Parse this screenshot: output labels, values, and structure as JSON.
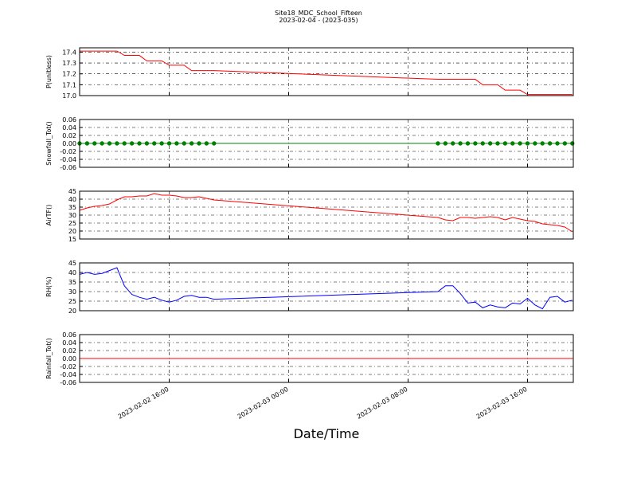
{
  "chart_data": [
    {
      "type": "line",
      "title": "Site18_MDC_School_Fifteen",
      "subtitle": "2023-02-04 - (2023-035)",
      "ylabel": "P(unitless)",
      "color": "#ff0000",
      "grid": true,
      "xlim": [
        "2023-02-02 10:00",
        "2023-02-03 19:04"
      ],
      "xticks": [
        "2023-02-02 16:00",
        "2023-02-03 00:00",
        "2023-02-03 08:00",
        "2023-02-03 16:00"
      ],
      "ylim": [
        17.0,
        17.44
      ],
      "yticks": [
        {
          "value": 17.0,
          "label": "17.0"
        },
        17.1,
        17.2,
        17.3,
        17.4
      ],
      "x": [
        "2023-02-02 10:00",
        "2023-02-02 10:30",
        "2023-02-02 11:00",
        "2023-02-02 11:30",
        "2023-02-02 12:00",
        "2023-02-02 12:30",
        "2023-02-02 13:00",
        "2023-02-02 13:30",
        "2023-02-02 14:00",
        "2023-02-02 14:30",
        "2023-02-02 15:00",
        "2023-02-02 15:30",
        "2023-02-02 16:00",
        "2023-02-02 16:30",
        "2023-02-02 17:00",
        "2023-02-02 17:30",
        "2023-02-02 18:00",
        "2023-02-02 18:30",
        "2023-02-02 19:00",
        "2023-02-03 10:00",
        "2023-02-03 10:30",
        "2023-02-03 11:00",
        "2023-02-03 11:30",
        "2023-02-03 12:00",
        "2023-02-03 12:30",
        "2023-02-03 13:00",
        "2023-02-03 13:30",
        "2023-02-03 14:00",
        "2023-02-03 14:30",
        "2023-02-03 15:00",
        "2023-02-03 15:30",
        "2023-02-03 16:00",
        "2023-02-03 16:30",
        "2023-02-03 17:00",
        "2023-02-03 17:30",
        "2023-02-03 18:00",
        "2023-02-03 18:30",
        "2023-02-03 19:00"
      ],
      "values": [
        17.41,
        17.41,
        17.41,
        17.41,
        17.41,
        17.41,
        17.37,
        17.37,
        17.37,
        17.32,
        17.32,
        17.32,
        17.28,
        17.28,
        17.28,
        17.23,
        17.23,
        17.23,
        17.23,
        17.15,
        17.15,
        17.15,
        17.15,
        17.15,
        17.15,
        17.1,
        17.1,
        17.1,
        17.05,
        17.05,
        17.05,
        17.01,
        17.01,
        17.01,
        17.01,
        17.01,
        17.01,
        17.01
      ]
    },
    {
      "type": "line",
      "ylabel": "Snowfall_Tot()",
      "color": "#008000",
      "markers": true,
      "grid": true,
      "xlim": [
        "2023-02-02 10:00",
        "2023-02-03 19:04"
      ],
      "xticks": [
        "2023-02-02 16:00",
        "2023-02-03 00:00",
        "2023-02-03 08:00",
        "2023-02-03 16:00"
      ],
      "ylim": [
        -0.06,
        0.06
      ],
      "yticks": [
        -0.06,
        -0.04,
        -0.02,
        {
          "value": 0,
          "label": "0.00"
        },
        0.02,
        0.04,
        0.06
      ],
      "x": [
        "2023-02-02 10:00",
        "2023-02-02 10:30",
        "2023-02-02 11:00",
        "2023-02-02 11:30",
        "2023-02-02 12:00",
        "2023-02-02 12:30",
        "2023-02-02 13:00",
        "2023-02-02 13:30",
        "2023-02-02 14:00",
        "2023-02-02 14:30",
        "2023-02-02 15:00",
        "2023-02-02 15:30",
        "2023-02-02 16:00",
        "2023-02-02 16:30",
        "2023-02-02 17:00",
        "2023-02-02 17:30",
        "2023-02-02 18:00",
        "2023-02-02 18:30",
        "2023-02-02 19:00",
        "2023-02-03 10:00",
        "2023-02-03 10:30",
        "2023-02-03 11:00",
        "2023-02-03 11:30",
        "2023-02-03 12:00",
        "2023-02-03 12:30",
        "2023-02-03 13:00",
        "2023-02-03 13:30",
        "2023-02-03 14:00",
        "2023-02-03 14:30",
        "2023-02-03 15:00",
        "2023-02-03 15:30",
        "2023-02-03 16:00",
        "2023-02-03 16:30",
        "2023-02-03 17:00",
        "2023-02-03 17:30",
        "2023-02-03 18:00",
        "2023-02-03 18:30",
        "2023-02-03 19:00"
      ],
      "values": [
        0,
        0,
        0,
        0,
        0,
        0,
        0,
        0,
        0,
        0,
        0,
        0,
        0,
        0,
        0,
        0,
        0,
        0,
        0,
        0,
        0,
        0,
        0,
        0,
        0,
        0,
        0,
        0,
        0,
        0,
        0,
        0,
        0,
        0,
        0,
        0,
        0,
        0
      ]
    },
    {
      "type": "line",
      "ylabel": "AirTF()",
      "color": "#ff0000",
      "grid": true,
      "xlim": [
        "2023-02-02 10:00",
        "2023-02-03 19:04"
      ],
      "xticks": [
        "2023-02-02 16:00",
        "2023-02-03 00:00",
        "2023-02-03 08:00",
        "2023-02-03 16:00"
      ],
      "ylim": [
        15,
        45
      ],
      "yticks": [
        15,
        20,
        25,
        30,
        35,
        40,
        45
      ],
      "x": [
        "2023-02-02 10:00",
        "2023-02-02 10:30",
        "2023-02-02 11:00",
        "2023-02-02 11:30",
        "2023-02-02 12:00",
        "2023-02-02 12:30",
        "2023-02-02 13:00",
        "2023-02-02 13:30",
        "2023-02-02 14:00",
        "2023-02-02 14:30",
        "2023-02-02 15:00",
        "2023-02-02 15:30",
        "2023-02-02 16:00",
        "2023-02-02 16:30",
        "2023-02-02 17:00",
        "2023-02-02 17:30",
        "2023-02-02 18:00",
        "2023-02-02 18:30",
        "2023-02-02 19:00",
        "2023-02-03 10:00",
        "2023-02-03 10:30",
        "2023-02-03 11:00",
        "2023-02-03 11:30",
        "2023-02-03 12:00",
        "2023-02-03 12:30",
        "2023-02-03 13:00",
        "2023-02-03 13:30",
        "2023-02-03 14:00",
        "2023-02-03 14:30",
        "2023-02-03 15:00",
        "2023-02-03 15:30",
        "2023-02-03 16:00",
        "2023-02-03 16:30",
        "2023-02-03 17:00",
        "2023-02-03 17:30",
        "2023-02-03 18:00",
        "2023-02-03 18:30",
        "2023-02-03 19:00"
      ],
      "values": [
        33,
        34.5,
        35.5,
        36,
        37,
        39.5,
        41.5,
        41.5,
        42,
        42,
        43.5,
        42.5,
        42.5,
        42,
        41,
        41,
        41.5,
        40.5,
        39.5,
        28.5,
        27,
        26.5,
        28.5,
        28.5,
        28,
        28.5,
        29,
        28.5,
        27,
        28.5,
        27.5,
        26.5,
        26,
        24.5,
        24,
        23.5,
        22.5,
        19.5
      ]
    },
    {
      "type": "line",
      "ylabel": "RH(%)",
      "color": "#0000ff",
      "grid": true,
      "xlim": [
        "2023-02-02 10:00",
        "2023-02-03 19:04"
      ],
      "xticks": [
        "2023-02-02 16:00",
        "2023-02-03 00:00",
        "2023-02-03 08:00",
        "2023-02-03 16:00"
      ],
      "ylim": [
        20,
        45
      ],
      "yticks": [
        20,
        25,
        30,
        35,
        40,
        45
      ],
      "x": [
        "2023-02-02 10:00",
        "2023-02-02 10:30",
        "2023-02-02 11:00",
        "2023-02-02 11:30",
        "2023-02-02 12:00",
        "2023-02-02 12:30",
        "2023-02-02 13:00",
        "2023-02-02 13:30",
        "2023-02-02 14:00",
        "2023-02-02 14:30",
        "2023-02-02 15:00",
        "2023-02-02 15:30",
        "2023-02-02 16:00",
        "2023-02-02 16:30",
        "2023-02-02 17:00",
        "2023-02-02 17:30",
        "2023-02-02 18:00",
        "2023-02-02 18:30",
        "2023-02-02 19:00",
        "2023-02-03 10:00",
        "2023-02-03 10:30",
        "2023-02-03 11:00",
        "2023-02-03 11:30",
        "2023-02-03 12:00",
        "2023-02-03 12:30",
        "2023-02-03 13:00",
        "2023-02-03 13:30",
        "2023-02-03 14:00",
        "2023-02-03 14:30",
        "2023-02-03 15:00",
        "2023-02-03 15:30",
        "2023-02-03 16:00",
        "2023-02-03 16:30",
        "2023-02-03 17:00",
        "2023-02-03 17:30",
        "2023-02-03 18:00",
        "2023-02-03 18:30",
        "2023-02-03 19:00"
      ],
      "values": [
        39,
        40,
        39,
        39.5,
        41,
        42.5,
        33,
        28.5,
        27,
        26,
        27,
        25.5,
        24.5,
        25.5,
        27.5,
        28,
        27,
        27,
        26,
        30,
        33,
        33,
        29,
        24,
        24.5,
        21.5,
        23,
        22,
        21.5,
        24,
        23.5,
        26.5,
        23,
        21,
        27,
        27.5,
        24.5,
        25.5
      ]
    },
    {
      "type": "line",
      "ylabel": "Rainfall_Tot()",
      "xlabel": "Date/Time",
      "color": "#ff0000",
      "grid": true,
      "xlim": [
        "2023-02-02 10:00",
        "2023-02-03 19:04"
      ],
      "xticks": [
        "2023-02-02 16:00",
        "2023-02-03 00:00",
        "2023-02-03 08:00",
        "2023-02-03 16:00"
      ],
      "ylim": [
        -0.06,
        0.06
      ],
      "yticks": [
        -0.06,
        -0.04,
        -0.02,
        {
          "value": 0,
          "label": "0.00"
        },
        0.02,
        0.04,
        0.06
      ],
      "x": [
        "2023-02-02 10:00",
        "2023-02-02 10:30",
        "2023-02-02 11:00",
        "2023-02-02 11:30",
        "2023-02-02 12:00",
        "2023-02-02 12:30",
        "2023-02-02 13:00",
        "2023-02-02 13:30",
        "2023-02-02 14:00",
        "2023-02-02 14:30",
        "2023-02-02 15:00",
        "2023-02-02 15:30",
        "2023-02-02 16:00",
        "2023-02-02 16:30",
        "2023-02-02 17:00",
        "2023-02-02 17:30",
        "2023-02-02 18:00",
        "2023-02-02 18:30",
        "2023-02-02 19:00",
        "2023-02-03 10:00",
        "2023-02-03 10:30",
        "2023-02-03 11:00",
        "2023-02-03 11:30",
        "2023-02-03 12:00",
        "2023-02-03 12:30",
        "2023-02-03 13:00",
        "2023-02-03 13:30",
        "2023-02-03 14:00",
        "2023-02-03 14:30",
        "2023-02-03 15:00",
        "2023-02-03 15:30",
        "2023-02-03 16:00",
        "2023-02-03 16:30",
        "2023-02-03 17:00",
        "2023-02-03 17:30",
        "2023-02-03 18:00",
        "2023-02-03 18:30",
        "2023-02-03 19:00"
      ],
      "values": [
        0,
        0,
        0,
        0,
        0,
        0,
        0,
        0,
        0,
        0,
        0,
        0,
        0,
        0,
        0,
        0,
        0,
        0,
        0,
        0,
        0,
        0,
        0,
        0,
        0,
        0,
        0,
        0,
        0,
        0,
        0,
        0,
        0,
        0,
        0,
        0,
        0,
        0
      ]
    }
  ]
}
